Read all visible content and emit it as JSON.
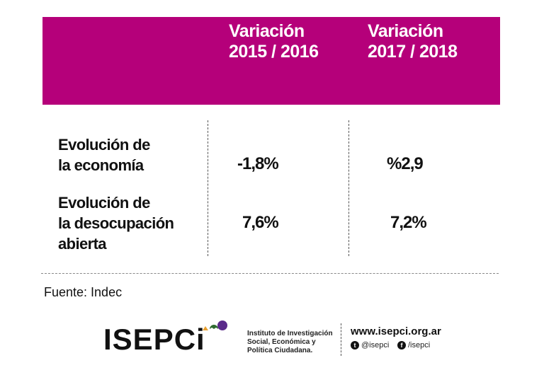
{
  "header": {
    "col1": {
      "line1": "Variación",
      "line2": "2015 / 2016"
    },
    "col2": {
      "line1": "Variación",
      "line2": "2017 / 2018"
    },
    "color": "#b5007a"
  },
  "rows": [
    {
      "label_line1": "Evolución de",
      "label_line2": "la economía",
      "label_line3": "",
      "v1": "-1,8%",
      "v2": "%2,9"
    },
    {
      "label_line1": "Evolución de",
      "label_line2": "la desocupación",
      "label_line3": "abierta",
      "v1": "7,6%",
      "v2": "7,2%"
    }
  ],
  "source": "Fuente: Indec",
  "footer": {
    "logo": "ISEPCi",
    "logo_colors": [
      "#e8a030",
      "#2e6b30",
      "#5a2a8a"
    ],
    "institute_line1": "Instituto de Investigación",
    "institute_line2": "Social, Económica y",
    "institute_line3": "Política Ciudadana.",
    "website": "www.isepci.org.ar",
    "twitter": "@isepci",
    "facebook": "/isepci"
  }
}
